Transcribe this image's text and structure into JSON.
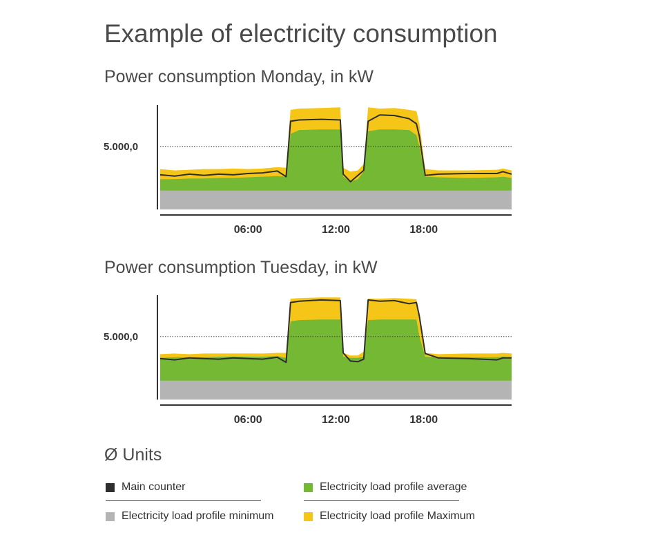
{
  "title": "Example of electricity consumption",
  "colors": {
    "main_counter": "#2e2e2e",
    "average": "#74b833",
    "minimum": "#b4b4b4",
    "maximum": "#f5c518",
    "reference_line": "#333333"
  },
  "chart_data": [
    {
      "type": "area",
      "title": "Power consumption Monday, in kW",
      "ytick_label": "5.000,0",
      "reference_value": 5000,
      "ylim": [
        0,
        8500
      ],
      "xlim": [
        0,
        24
      ],
      "xticks": [
        "06:00",
        "12:00",
        "18:00"
      ],
      "xtick_values": [
        6,
        12,
        18
      ],
      "x": [
        0,
        1,
        2,
        3,
        4,
        5,
        6,
        7,
        8,
        8.6,
        8.9,
        9.5,
        11,
        12.3,
        12.5,
        13,
        13.5,
        13.9,
        14.2,
        15,
        16,
        17,
        17.5,
        17.7,
        18.1,
        19,
        21,
        23,
        23.4,
        24
      ],
      "series": [
        {
          "name": "Electricity load profile minimum",
          "values": [
            1500,
            1500,
            1500,
            1500,
            1500,
            1500,
            1500,
            1500,
            1500,
            1500,
            1500,
            1500,
            1500,
            1500,
            1500,
            1500,
            1500,
            1500,
            1500,
            1500,
            1500,
            1500,
            1500,
            1500,
            1500,
            1500,
            1500,
            1500,
            1500,
            1500
          ]
        },
        {
          "name": "Electricity load profile average",
          "values": [
            2400,
            2400,
            2450,
            2450,
            2500,
            2500,
            2550,
            2600,
            2650,
            2600,
            6000,
            6300,
            6350,
            6350,
            2600,
            2200,
            2400,
            3000,
            6200,
            6350,
            6350,
            6300,
            5900,
            5000,
            2600,
            2550,
            2500,
            2550,
            2600,
            2500
          ]
        },
        {
          "name": "Electricity load profile Maximum",
          "values": [
            3200,
            3100,
            3150,
            3200,
            3200,
            3250,
            3200,
            3250,
            3350,
            3300,
            7900,
            8000,
            8050,
            8100,
            3300,
            3000,
            3100,
            3600,
            8100,
            8000,
            8050,
            7900,
            7800,
            6800,
            3200,
            3100,
            3100,
            3150,
            3250,
            3100
          ]
        },
        {
          "name": "Main counter",
          "values": [
            2750,
            2650,
            2800,
            2700,
            2800,
            2750,
            2850,
            2900,
            3050,
            2600,
            7000,
            7100,
            7150,
            7100,
            2800,
            2200,
            2700,
            3100,
            7000,
            7500,
            7450,
            7200,
            6800,
            5800,
            2700,
            2800,
            2850,
            2850,
            3000,
            2800
          ]
        }
      ]
    },
    {
      "type": "area",
      "title": "Power consumption Tuesday, in kW",
      "ytick_label": "5.000,0",
      "reference_value": 5000,
      "ylim": [
        0,
        8500
      ],
      "xlim": [
        0,
        24
      ],
      "xticks": [
        "06:00",
        "12:00",
        "18:00"
      ],
      "xtick_values": [
        6,
        12,
        18
      ],
      "x": [
        0,
        1,
        2,
        3,
        4,
        5,
        6,
        7,
        8,
        8.6,
        8.9,
        9.5,
        11,
        12.3,
        12.5,
        13,
        13.5,
        13.9,
        14.2,
        15,
        16,
        17,
        17.5,
        17.7,
        18.1,
        19,
        21,
        23,
        23.4,
        24
      ],
      "series": [
        {
          "name": "Electricity load profile minimum",
          "values": [
            1500,
            1500,
            1500,
            1500,
            1500,
            1500,
            1500,
            1500,
            1500,
            1500,
            1500,
            1500,
            1500,
            1500,
            1500,
            1500,
            1500,
            1500,
            1500,
            1500,
            1500,
            1500,
            1500,
            1500,
            1500,
            1500,
            1500,
            1500,
            1500,
            1500
          ]
        },
        {
          "name": "Electricity load profile average",
          "values": [
            3300,
            3350,
            3350,
            3350,
            3400,
            3400,
            3400,
            3400,
            3450,
            3300,
            6200,
            6300,
            6350,
            6350,
            3400,
            3300,
            3300,
            3400,
            6300,
            6350,
            6350,
            6350,
            6350,
            5000,
            3400,
            3350,
            3350,
            3350,
            3400,
            3350
          ]
        },
        {
          "name": "Electricity load profile Maximum",
          "values": [
            3600,
            3650,
            3600,
            3650,
            3650,
            3650,
            3650,
            3650,
            3700,
            3700,
            8000,
            8050,
            8100,
            8100,
            3700,
            3500,
            3500,
            3800,
            8000,
            8000,
            8050,
            8000,
            7950,
            6900,
            3700,
            3600,
            3650,
            3650,
            3700,
            3650
          ]
        },
        {
          "name": "Main counter",
          "values": [
            3250,
            3150,
            3300,
            3250,
            3200,
            3300,
            3250,
            3200,
            3350,
            2950,
            7700,
            7800,
            7900,
            7850,
            3700,
            3050,
            3000,
            3200,
            7900,
            7800,
            7850,
            7600,
            7700,
            6600,
            3650,
            3300,
            3250,
            3150,
            3300,
            3300
          ]
        }
      ]
    }
  ],
  "legend": {
    "title": "Ø Units",
    "items": [
      {
        "label": "Main counter",
        "color": "#2e2e2e"
      },
      {
        "label": "Electricity load profile average",
        "color": "#74b833"
      },
      {
        "label": "Electricity load profile minimum",
        "color": "#b4b4b4"
      },
      {
        "label": "Electricity load profile Maximum",
        "color": "#f5c518"
      }
    ]
  }
}
